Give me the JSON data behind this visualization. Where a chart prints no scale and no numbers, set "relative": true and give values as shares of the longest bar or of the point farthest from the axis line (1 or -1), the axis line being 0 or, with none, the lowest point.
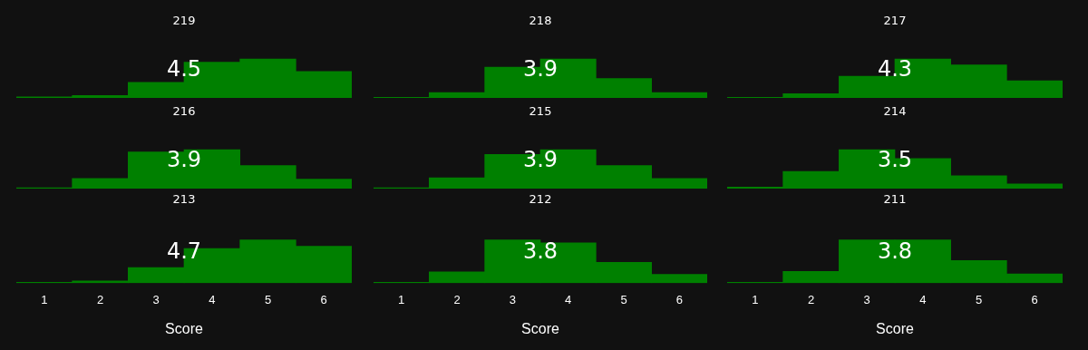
{
  "chart_data": [
    {
      "type": "bar",
      "title": "219",
      "categories": [
        "1",
        "2",
        "3",
        "4",
        "5",
        "6"
      ],
      "values": [
        0.03,
        0.06,
        0.4,
        0.92,
        1,
        0.68
      ],
      "color": "#008000",
      "relative": true,
      "annotations": [
        "4.5"
      ],
      "tick_labels": false
    },
    {
      "type": "bar",
      "title": "218",
      "categories": [
        "1",
        "2",
        "3",
        "4",
        "5",
        "6"
      ],
      "values": [
        0.013,
        0.14,
        0.79,
        1,
        0.5,
        0.14
      ],
      "color": "#008000",
      "relative": true,
      "annotations": [
        "3.9"
      ],
      "tick_labels": false
    },
    {
      "type": "bar",
      "title": "217",
      "categories": [
        "1",
        "2",
        "3",
        "4",
        "5",
        "6"
      ],
      "values": [
        0.015,
        0.11,
        0.56,
        1,
        0.85,
        0.44
      ],
      "color": "#008000",
      "relative": true,
      "annotations": [
        "4.3"
      ],
      "tick_labels": false
    },
    {
      "type": "bar",
      "title": "216",
      "categories": [
        "1",
        "2",
        "3",
        "4",
        "5",
        "6"
      ],
      "values": [
        0.02,
        0.26,
        0.94,
        1,
        0.59,
        0.24
      ],
      "color": "#008000",
      "relative": true,
      "annotations": [
        "3.9"
      ],
      "tick_labels": false
    },
    {
      "type": "bar",
      "title": "215",
      "categories": [
        "1",
        "2",
        "3",
        "4",
        "5",
        "6"
      ],
      "values": [
        0.02,
        0.28,
        0.88,
        1,
        0.59,
        0.26
      ],
      "color": "#008000",
      "relative": true,
      "annotations": [
        "3.9"
      ],
      "tick_labels": false
    },
    {
      "type": "bar",
      "title": "214",
      "categories": [
        "1",
        "2",
        "3",
        "4",
        "5",
        "6"
      ],
      "values": [
        0.04,
        0.44,
        1,
        0.77,
        0.33,
        0.12
      ],
      "color": "#008000",
      "relative": true,
      "annotations": [
        "3.5"
      ],
      "tick_labels": false
    },
    {
      "type": "bar",
      "title": "213",
      "xlabel": "Score",
      "categories": [
        "1",
        "2",
        "3",
        "4",
        "5",
        "6"
      ],
      "values": [
        0.02,
        0.05,
        0.36,
        0.8,
        1,
        0.85
      ],
      "color": "#008000",
      "relative": true,
      "annotations": [
        "4.7"
      ],
      "tick_labels": "x"
    },
    {
      "type": "bar",
      "title": "212",
      "xlabel": "Score",
      "categories": [
        "1",
        "2",
        "3",
        "4",
        "5",
        "6"
      ],
      "values": [
        0.02,
        0.26,
        1,
        0.93,
        0.48,
        0.2
      ],
      "color": "#008000",
      "relative": true,
      "annotations": [
        "3.8"
      ],
      "tick_labels": "x"
    },
    {
      "type": "bar",
      "title": "211",
      "xlabel": "Score",
      "categories": [
        "1",
        "2",
        "3",
        "4",
        "5",
        "6"
      ],
      "values": [
        0.02,
        0.27,
        1,
        1,
        0.52,
        0.21
      ],
      "color": "#008000",
      "relative": true,
      "annotations": [
        "3.8"
      ],
      "tick_labels": "x"
    }
  ]
}
